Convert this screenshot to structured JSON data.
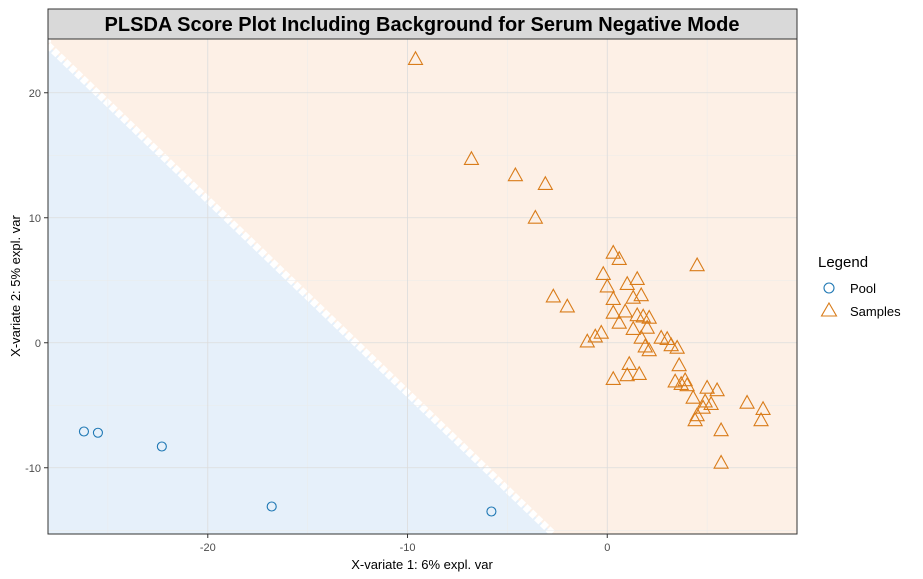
{
  "chart_data": {
    "type": "scatter",
    "title": "PLSDA Score Plot Including Background for Serum Negative Mode",
    "xlabel": "X-variate 1: 6% expl. var",
    "ylabel": "X-variate 2: 5% expl. var",
    "xlim": [
      -28,
      9.5
    ],
    "ylim": [
      -15.3,
      24.3
    ],
    "xticks": [
      -20,
      -10,
      0
    ],
    "yticks": [
      -10,
      0,
      10,
      20
    ],
    "grid": true,
    "legend": {
      "title": "Legend",
      "position": "right",
      "entries": [
        {
          "label": "Pool",
          "shape": "circle",
          "color": "#1f78b4"
        },
        {
          "label": "Samples",
          "shape": "triangle",
          "color": "#d97c1a"
        }
      ]
    },
    "background": {
      "pool_region_color": "#e6f0fa",
      "samples_region_color": "#fdf0e6",
      "boundary": [
        [
          -28,
          23.8
        ],
        [
          -2.7,
          -15.3
        ]
      ]
    },
    "series": [
      {
        "name": "Pool",
        "shape": "circle",
        "color": "#1f78b4",
        "points": [
          [
            -26.2,
            -7.1
          ],
          [
            -25.5,
            -7.2
          ],
          [
            -22.3,
            -8.3
          ],
          [
            -16.8,
            -13.1
          ],
          [
            -5.8,
            -13.5
          ]
        ]
      },
      {
        "name": "Samples",
        "shape": "triangle",
        "color": "#d97c1a",
        "points": [
          [
            -9.6,
            22.7
          ],
          [
            -6.8,
            14.7
          ],
          [
            -4.6,
            13.4
          ],
          [
            -3.1,
            12.7
          ],
          [
            -3.6,
            10.0
          ],
          [
            -2.7,
            3.7
          ],
          [
            -2.0,
            2.9
          ],
          [
            0.3,
            7.2
          ],
          [
            0.6,
            6.7
          ],
          [
            4.5,
            6.2
          ],
          [
            -0.2,
            5.5
          ],
          [
            0.0,
            4.5
          ],
          [
            0.3,
            3.5
          ],
          [
            0.3,
            2.4
          ],
          [
            0.6,
            1.6
          ],
          [
            -1.0,
            0.1
          ],
          [
            -0.6,
            0.5
          ],
          [
            -0.3,
            0.8
          ],
          [
            1.0,
            4.7
          ],
          [
            1.5,
            5.1
          ],
          [
            1.3,
            3.6
          ],
          [
            1.7,
            3.8
          ],
          [
            1.8,
            2.1
          ],
          [
            1.5,
            2.2
          ],
          [
            2.1,
            2.0
          ],
          [
            0.9,
            2.5
          ],
          [
            1.3,
            1.1
          ],
          [
            2.0,
            1.2
          ],
          [
            1.7,
            0.4
          ],
          [
            2.7,
            0.4
          ],
          [
            3.0,
            0.3
          ],
          [
            3.2,
            -0.2
          ],
          [
            3.5,
            -0.4
          ],
          [
            2.1,
            -0.6
          ],
          [
            1.9,
            -0.3
          ],
          [
            1.1,
            -1.7
          ],
          [
            3.6,
            -1.8
          ],
          [
            1.0,
            -2.6
          ],
          [
            1.6,
            -2.5
          ],
          [
            3.4,
            -3.1
          ],
          [
            3.9,
            -3.0
          ],
          [
            3.7,
            -3.3
          ],
          [
            4.0,
            -3.4
          ],
          [
            5.0,
            -3.6
          ],
          [
            5.5,
            -3.8
          ],
          [
            4.3,
            -4.4
          ],
          [
            4.9,
            -4.7
          ],
          [
            5.2,
            -4.9
          ],
          [
            4.8,
            -5.2
          ],
          [
            4.5,
            -5.8
          ],
          [
            4.4,
            -6.2
          ],
          [
            7.0,
            -4.8
          ],
          [
            7.8,
            -5.3
          ],
          [
            7.7,
            -6.2
          ],
          [
            5.7,
            -7.0
          ],
          [
            5.7,
            -9.6
          ],
          [
            0.3,
            -2.9
          ]
        ]
      }
    ]
  }
}
